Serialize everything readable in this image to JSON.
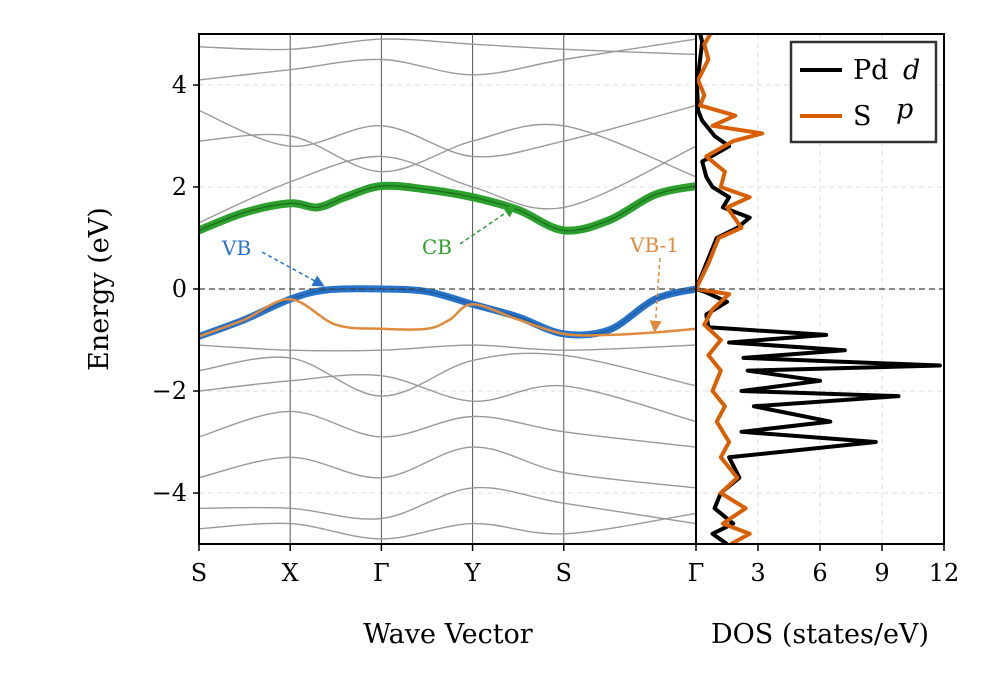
{
  "chart_data": [
    {
      "type": "line",
      "panel": "band structure",
      "xlabel": "Wave Vector",
      "ylabel": "Energy (eV)",
      "ylim": [
        -5,
        5
      ],
      "yticks": [
        -4,
        -2,
        0,
        2,
        4
      ],
      "ytick_labels": [
        "−4",
        "−2",
        "0",
        "2",
        "4"
      ],
      "kpath_labels": [
        "S",
        "X",
        "Γ",
        "Y",
        "S",
        "Γ"
      ],
      "kpath_positions": [
        0,
        1,
        2,
        3,
        4,
        5.45
      ],
      "fermi_level": 0,
      "grid": true,
      "colors": {
        "VB": "#2673c9",
        "CB": "#2ca02c",
        "VB-1": "#e08a3c",
        "other": "#999999"
      },
      "highlighted_bands": [
        {
          "name": "VB",
          "x": [
            0,
            0.5,
            1,
            1.4,
            2,
            2.5,
            3,
            3.5,
            4,
            4.5,
            5,
            5.45
          ],
          "y": [
            -0.93,
            -0.6,
            -0.2,
            -0.02,
            0,
            -0.05,
            -0.3,
            -0.55,
            -0.88,
            -0.8,
            -0.2,
            0
          ]
        },
        {
          "name": "CB",
          "x": [
            0,
            0.5,
            1,
            1.3,
            1.6,
            2,
            2.5,
            3,
            3.5,
            4,
            4.5,
            5,
            5.45
          ],
          "y": [
            1.15,
            1.5,
            1.68,
            1.6,
            1.8,
            2.02,
            1.95,
            1.8,
            1.55,
            1.15,
            1.35,
            1.85,
            2.02
          ]
        },
        {
          "name": "VB-1",
          "x": [
            0,
            0.5,
            1,
            1.5,
            2,
            2.5,
            2.75,
            3,
            3.5,
            4,
            4.5,
            5,
            5.45
          ],
          "y": [
            -0.93,
            -0.6,
            -0.2,
            -0.7,
            -0.78,
            -0.78,
            -0.6,
            -0.3,
            -0.6,
            -0.88,
            -0.9,
            -0.85,
            -0.78
          ]
        }
      ],
      "other_bands": [
        {
          "x": [
            0,
            1,
            2,
            3,
            4,
            5.45
          ],
          "y": [
            4.75,
            4.7,
            4.9,
            4.8,
            4.7,
            4.6
          ]
        },
        {
          "x": [
            0,
            1,
            2,
            3,
            4,
            5.45
          ],
          "y": [
            4.1,
            4.3,
            4.5,
            4.2,
            4.5,
            4.9
          ]
        },
        {
          "x": [
            0,
            1,
            2,
            3,
            4,
            5.45
          ],
          "y": [
            3.5,
            2.8,
            3.2,
            2.6,
            2.9,
            3.6
          ]
        },
        {
          "x": [
            0,
            1,
            2,
            3,
            4,
            5.45
          ],
          "y": [
            2.9,
            3.0,
            2.3,
            2.9,
            3.2,
            2.2
          ]
        },
        {
          "x": [
            0,
            1,
            2,
            3,
            4,
            5.45
          ],
          "y": [
            1.3,
            2.1,
            2.6,
            2.0,
            1.6,
            2.8
          ]
        },
        {
          "x": [
            0,
            1,
            2,
            3,
            4,
            5.45
          ],
          "y": [
            -1.1,
            -1.2,
            -1.2,
            -1.1,
            -1.2,
            -1.1
          ]
        },
        {
          "x": [
            0,
            1,
            2,
            3,
            4,
            5.45
          ],
          "y": [
            -1.6,
            -1.35,
            -2.1,
            -1.4,
            -1.3,
            -1.9
          ]
        },
        {
          "x": [
            0,
            1,
            2,
            3,
            4,
            5.45
          ],
          "y": [
            -2.0,
            -1.8,
            -1.7,
            -2.2,
            -1.9,
            -2.6
          ]
        },
        {
          "x": [
            0,
            1,
            2,
            3,
            4,
            5.45
          ],
          "y": [
            -2.9,
            -2.4,
            -2.9,
            -2.5,
            -2.8,
            -3.1
          ]
        },
        {
          "x": [
            0,
            1,
            2,
            3,
            4,
            5.45
          ],
          "y": [
            -3.7,
            -3.3,
            -3.7,
            -3.1,
            -3.6,
            -3.9
          ]
        },
        {
          "x": [
            0,
            1,
            2,
            3,
            4,
            5.45
          ],
          "y": [
            -4.3,
            -4.3,
            -4.5,
            -3.9,
            -4.2,
            -4.6
          ]
        },
        {
          "x": [
            0,
            1,
            2,
            3,
            4,
            5.45
          ],
          "y": [
            -4.7,
            -4.6,
            -4.9,
            -4.6,
            -4.8,
            -4.4
          ]
        }
      ],
      "annotations": [
        {
          "text": "VB",
          "color": "#2673c9",
          "points_to": {
            "x": 1.35,
            "y": 0.0
          }
        },
        {
          "text": "CB",
          "color": "#2ca02c",
          "points_to": {
            "x": 3.45,
            "y": 1.6
          }
        },
        {
          "text": "VB-1",
          "color": "#e08a3c",
          "points_to": {
            "x": 5.0,
            "y": -0.8
          }
        }
      ]
    },
    {
      "type": "line",
      "panel": "DOS",
      "xlabel": "DOS (states/eV)",
      "xlim": [
        0,
        12
      ],
      "xticks": [
        0,
        3,
        6,
        9,
        12
      ],
      "xtick_labels": [
        "Γ",
        "3",
        "6",
        "9",
        "12"
      ],
      "ylim": [
        -5,
        5
      ],
      "grid": true,
      "legend": "top-right",
      "series": [
        {
          "name": "Pd d",
          "color": "#000000",
          "energy": [
            -5.0,
            -4.8,
            -4.6,
            -4.3,
            -4.0,
            -3.7,
            -3.3,
            -3.0,
            -2.8,
            -2.6,
            -2.3,
            -2.1,
            -2.0,
            -1.8,
            -1.6,
            -1.5,
            -1.35,
            -1.2,
            -1.05,
            -0.9,
            -0.75,
            -0.5,
            -0.25,
            -0.05,
            0.0,
            0.5,
            1.0,
            1.2,
            1.4,
            1.6,
            1.8,
            2.0,
            2.2,
            2.5,
            2.8,
            3.0,
            3.15,
            3.3,
            3.5,
            4.0,
            4.5,
            4.85,
            5.0
          ],
          "dos": [
            1.5,
            0.8,
            1.8,
            0.9,
            1.2,
            2.1,
            1.6,
            8.7,
            2.2,
            6.5,
            2.8,
            9.8,
            2.2,
            6.0,
            2.5,
            11.8,
            2.3,
            7.2,
            1.6,
            6.3,
            0.6,
            0.5,
            1.5,
            0.4,
            0.0,
            0.5,
            1.0,
            2.0,
            2.6,
            1.3,
            1.6,
            0.8,
            0.5,
            0.3,
            1.6,
            0.9,
            0.6,
            0.3,
            0.1,
            0.05,
            0.2,
            0.3,
            0.2
          ]
        },
        {
          "name": "S p",
          "color": "#d95f02",
          "energy": [
            -5.0,
            -4.8,
            -4.6,
            -4.3,
            -4.0,
            -3.7,
            -3.3,
            -3.0,
            -2.6,
            -2.3,
            -2.0,
            -1.6,
            -1.3,
            -1.0,
            -0.7,
            -0.4,
            -0.1,
            0.0,
            0.5,
            1.0,
            1.2,
            1.6,
            1.8,
            2.0,
            2.3,
            2.6,
            2.9,
            3.05,
            3.2,
            3.4,
            3.6,
            3.8,
            4.1,
            4.5,
            4.8,
            5.0
          ],
          "dos": [
            1.7,
            2.6,
            1.3,
            2.4,
            1.2,
            2.0,
            1.2,
            1.6,
            1.0,
            1.4,
            0.8,
            1.2,
            0.6,
            1.2,
            0.4,
            0.8,
            1.6,
            0.0,
            0.6,
            1.1,
            2.2,
            1.5,
            2.6,
            1.2,
            1.4,
            0.5,
            1.8,
            3.2,
            0.8,
            1.9,
            0.2,
            0.4,
            0.1,
            0.6,
            0.4,
            0.7
          ]
        }
      ],
      "legend_entries": [
        {
          "label": "Pd",
          "italic": "d",
          "color": "#000000"
        },
        {
          "label": "S",
          "italic": "p",
          "color": "#d95f02"
        }
      ]
    }
  ]
}
